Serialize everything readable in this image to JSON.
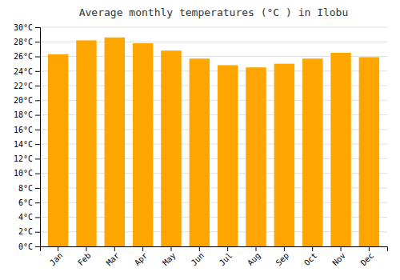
{
  "chart_data": {
    "type": "bar",
    "title": "Average monthly temperatures (°C ) in Ilobu",
    "categories": [
      "Jan",
      "Feb",
      "Mar",
      "Apr",
      "May",
      "Jun",
      "Jul",
      "Aug",
      "Sep",
      "Oct",
      "Nov",
      "Dec"
    ],
    "values": [
      26.3,
      28.2,
      28.6,
      27.8,
      26.8,
      25.7,
      24.8,
      24.5,
      25.0,
      25.7,
      26.5,
      25.9
    ],
    "color": "#FFA500",
    "ylim": [
      0,
      30
    ],
    "yticks": [
      {
        "value": 0,
        "label": "0°C"
      },
      {
        "value": 2,
        "label": "2°C"
      },
      {
        "value": 4,
        "label": "4°C"
      },
      {
        "value": 6,
        "label": "6°C"
      },
      {
        "value": 8,
        "label": "8°C"
      },
      {
        "value": 10,
        "label": "10°C"
      },
      {
        "value": 12,
        "label": "12°C"
      },
      {
        "value": 14,
        "label": "14°C"
      },
      {
        "value": 16,
        "label": "16°C"
      },
      {
        "value": 18,
        "label": "18°C"
      },
      {
        "value": 20,
        "label": "20°C"
      },
      {
        "value": 22,
        "label": "22°C"
      },
      {
        "value": 24,
        "label": "24°C"
      },
      {
        "value": 26,
        "label": "26°C"
      },
      {
        "value": 28,
        "label": "28°C"
      },
      {
        "value": 30,
        "label": "30°C"
      }
    ],
    "grid": true
  }
}
